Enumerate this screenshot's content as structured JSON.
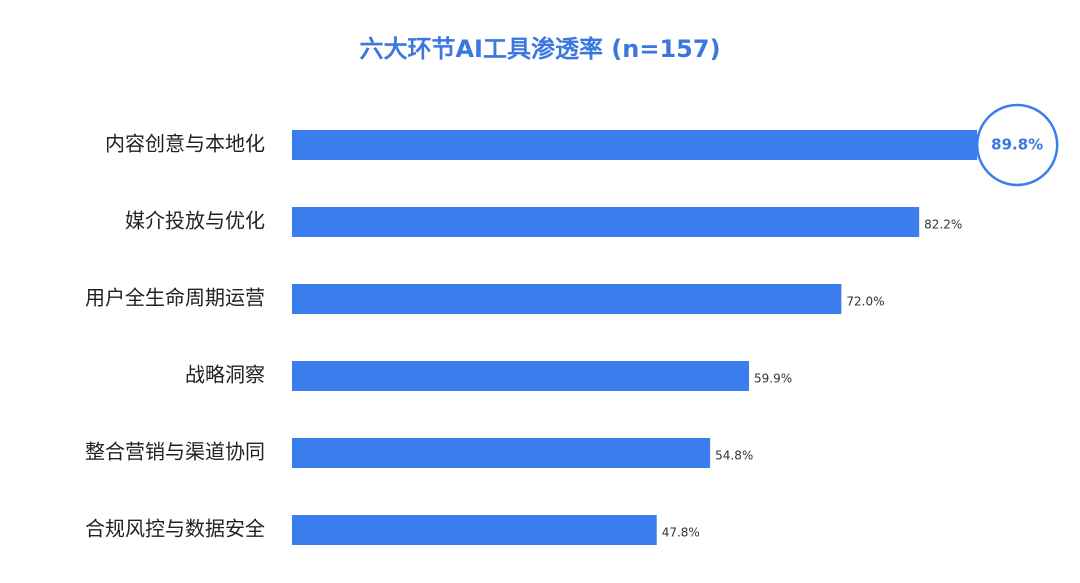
{
  "chart_data": {
    "type": "bar",
    "orientation": "horizontal",
    "title": "六大环节AI工具渗透率 (n=157)",
    "categories": [
      "内容创意与本地化",
      "媒介投放与优化",
      "用户全生命周期运营",
      "战略洞察",
      "整合营销与渠道协同",
      "合规风控与数据安全"
    ],
    "values": [
      89.8,
      82.2,
      72.0,
      59.9,
      54.8,
      47.8
    ],
    "value_labels": [
      "89.8%",
      "82.2%",
      "72.0%",
      "59.9%",
      "54.8%",
      "47.8%"
    ],
    "color": "#3b7ded"
  }
}
